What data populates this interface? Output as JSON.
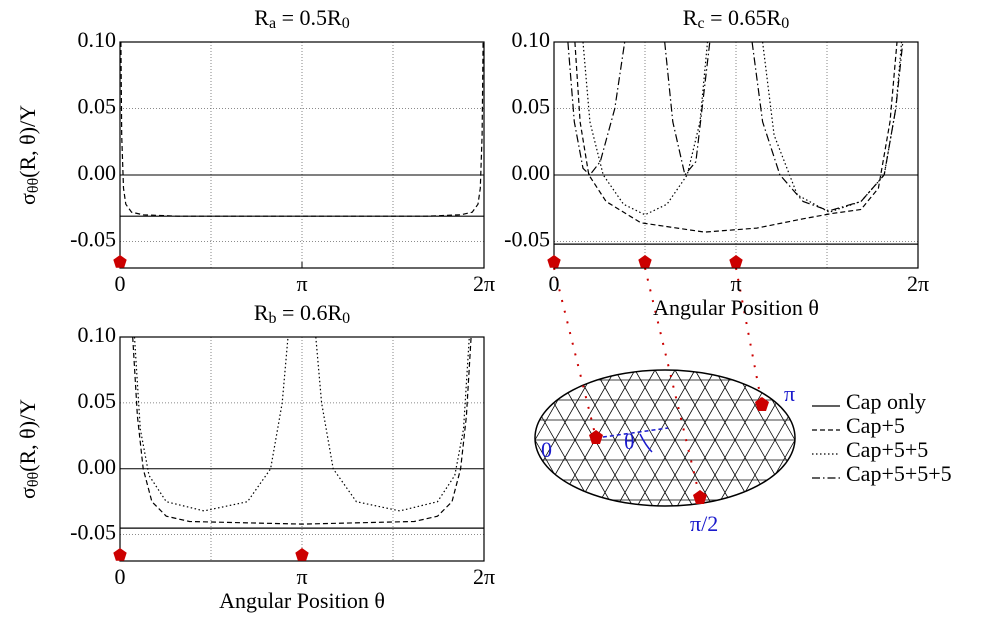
{
  "chart_data": [
    {
      "type": "line",
      "title": [
        "R",
        "a",
        " = 0.5R",
        "0"
      ],
      "ylabel": [
        "σ",
        "θθ",
        "(R, θ)/Y"
      ],
      "xlim": [
        0,
        6.2832
      ],
      "xticks": [
        0,
        {
          "value": 3.1416,
          "label": "π"
        },
        {
          "value": 6.2832,
          "label": "2π"
        }
      ],
      "ylim": [
        -0.07,
        0.1
      ],
      "yticks": [
        {
          "value": 0.1,
          "label": "0.10"
        },
        0.05,
        {
          "value": 0,
          "label": "0.00"
        },
        -0.05
      ],
      "grid": true,
      "xgrid": [
        1.5708,
        3.1416,
        4.7124
      ],
      "caps": [
        0
      ],
      "series": [
        {
          "name": "Cap only",
          "dash": "solid",
          "color": "#000000",
          "x": [
            0,
            6.2832
          ],
          "values": [
            -0.031,
            -0.031
          ]
        },
        {
          "name": "Cap+5",
          "dash": "dashed",
          "color": "#000000",
          "x": [
            0.015,
            0.03,
            0.06,
            0.1,
            0.2,
            0.4,
            1,
            3.1416,
            5.28,
            5.88,
            6.08,
            6.18,
            6.22,
            6.25,
            6.268
          ],
          "values": [
            0.1,
            0.03,
            -0.01,
            -0.022,
            -0.028,
            -0.03,
            -0.031,
            -0.031,
            -0.031,
            -0.03,
            -0.028,
            -0.022,
            -0.01,
            0.03,
            0.1
          ]
        }
      ]
    },
    {
      "type": "line",
      "title": [
        "R",
        "b",
        " = 0.6R",
        "0"
      ],
      "ylabel": [
        "σ",
        "θθ",
        "(R, θ)/Y"
      ],
      "xlabel": "Angular Position θ",
      "xlim": [
        0,
        6.2832
      ],
      "xticks": [
        0,
        {
          "value": 3.1416,
          "label": "π"
        },
        {
          "value": 6.2832,
          "label": "2π"
        }
      ],
      "ylim": [
        -0.07,
        0.1
      ],
      "yticks": [
        {
          "value": 0.1,
          "label": "0.10"
        },
        0.05,
        {
          "value": 0,
          "label": "0.00"
        },
        -0.05
      ],
      "grid": true,
      "xgrid": [
        1.5708,
        3.1416,
        4.7124
      ],
      "caps": [
        0,
        3.1416
      ],
      "series": [
        {
          "name": "Cap only",
          "dash": "solid",
          "color": "#000000",
          "x": [
            0,
            6.2832
          ],
          "values": [
            -0.045,
            -0.045
          ]
        },
        {
          "name": "Cap+5",
          "dash": "dashed",
          "color": "#000000",
          "x": [
            0.22,
            0.3,
            0.4,
            0.55,
            0.8,
            1.2,
            3.1416,
            5.08,
            5.48,
            5.73,
            5.88,
            5.98,
            6.06
          ],
          "values": [
            0.1,
            0.04,
            0,
            -0.025,
            -0.036,
            -0.04,
            -0.042,
            -0.04,
            -0.036,
            -0.025,
            0,
            0.04,
            0.1
          ]
        },
        {
          "name": "Cap+5+5",
          "dash": "dotted",
          "color": "#000000",
          "x": [
            0.25,
            0.35,
            0.5,
            0.8,
            1.45,
            2.2,
            2.6,
            2.8,
            2.9,
            3.1416,
            3.38,
            3.48,
            3.68,
            4.08,
            4.83,
            5.48,
            5.78,
            5.93,
            6.03
          ],
          "values": [
            0.1,
            0.03,
            -0.005,
            -0.025,
            -0.032,
            -0.025,
            0,
            0.05,
            0.1,
            null,
            0.1,
            0.05,
            0,
            -0.025,
            -0.032,
            -0.025,
            -0.005,
            0.03,
            0.1
          ]
        }
      ]
    },
    {
      "type": "line",
      "title": [
        "R",
        "c",
        " = 0.65R",
        "0"
      ],
      "xlabel": "Angular Position θ",
      "xlim": [
        0,
        6.2832
      ],
      "xticks": [
        0,
        {
          "value": 3.1416,
          "label": "π"
        },
        {
          "value": 6.2832,
          "label": "2π"
        }
      ],
      "ylim": [
        -0.07,
        0.1
      ],
      "yticks": [
        {
          "value": 0.1,
          "label": "0.10"
        },
        0.05,
        {
          "value": 0,
          "label": "0.00"
        },
        -0.05
      ],
      "grid": true,
      "xgrid": [
        1.5708,
        3.1416,
        4.7124
      ],
      "caps": [
        0,
        1.5708,
        3.1416
      ],
      "series": [
        {
          "name": "Cap only",
          "dash": "solid",
          "color": "#000000",
          "x": [
            0,
            6.2832
          ],
          "values": [
            -0.052,
            -0.052
          ]
        },
        {
          "name": "Cap+5",
          "dash": "dashed",
          "color": "#000000",
          "x": [
            0.36,
            0.45,
            0.6,
            0.9,
            1.5,
            2.6,
            3.5,
            4.3,
            4.8,
            5.3,
            5.6,
            5.8,
            5.92
          ],
          "values": [
            0.1,
            0.04,
            0,
            -0.02,
            -0.036,
            -0.043,
            -0.04,
            -0.033,
            -0.029,
            -0.026,
            -0.01,
            0.04,
            0.1
          ]
        },
        {
          "name": "Cap+5+5",
          "dash": "dotted",
          "color": "#000000",
          "x": [
            0.5,
            0.62,
            0.85,
            1.2,
            1.57,
            1.95,
            2.3,
            2.52,
            2.65,
            3.1416,
            3.6,
            3.8,
            4.2,
            4.75,
            5.3,
            5.7,
            5.9,
            6.0
          ],
          "values": [
            0.1,
            0.04,
            0,
            -0.022,
            -0.03,
            -0.022,
            0,
            0.04,
            0.1,
            null,
            0.1,
            0.03,
            -0.015,
            -0.028,
            -0.02,
            0,
            0.05,
            0.1
          ]
        },
        {
          "name": "Cap+5+5+5",
          "dash": "dashdot",
          "color": "#000000",
          "x": [
            0.24,
            0.35,
            0.5,
            0.62,
            0.8,
            1.05,
            1.22,
            1.5708,
            1.91,
            2.05,
            2.26,
            2.45,
            2.69,
            3.1416,
            3.42,
            3.6,
            3.9,
            4.3,
            4.75,
            5.3,
            5.7,
            5.9,
            6.02
          ],
          "values": [
            0.1,
            0.04,
            0.005,
            0,
            0.01,
            0.05,
            0.1,
            null,
            0.1,
            0.04,
            0,
            0.01,
            0.1,
            null,
            0.1,
            0.04,
            0,
            -0.02,
            -0.027,
            -0.02,
            0,
            0.05,
            0.1
          ]
        }
      ]
    }
  ],
  "diagram": {
    "labels": [
      "0",
      "π/2",
      "π",
      "θ"
    ]
  }
}
